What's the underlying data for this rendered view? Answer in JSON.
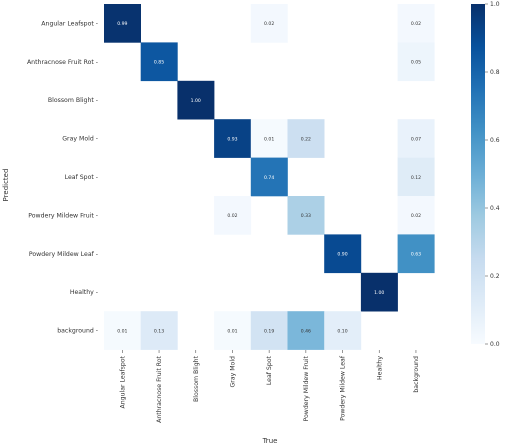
{
  "chart_data": {
    "type": "heatmap",
    "title": "",
    "xlabel": "True",
    "ylabel": "Predicted",
    "x_categories": [
      "Angular Leafspot",
      "Anthracnose Fruit Rot",
      "Blossom Blight",
      "Gray Mold",
      "Leaf Spot",
      "Powdery Mildew Fruit",
      "Powdery Mildew Leaf",
      "Healthy",
      "background"
    ],
    "y_categories": [
      "Angular Leafspot",
      "Anthracnose Fruit Rot",
      "Blossom Blight",
      "Gray Mold",
      "Leaf Spot",
      "Powdery Mildew Fruit",
      "Powdery Mildew Leaf",
      "Healthy",
      "background"
    ],
    "values": [
      [
        0.99,
        null,
        null,
        null,
        0.02,
        null,
        null,
        null,
        0.02
      ],
      [
        null,
        0.85,
        null,
        null,
        null,
        null,
        null,
        null,
        0.05
      ],
      [
        null,
        null,
        1.0,
        null,
        null,
        null,
        null,
        null,
        null
      ],
      [
        null,
        null,
        null,
        0.93,
        0.01,
        0.22,
        null,
        null,
        0.07
      ],
      [
        null,
        null,
        null,
        null,
        0.74,
        null,
        null,
        null,
        0.12
      ],
      [
        null,
        null,
        null,
        0.02,
        null,
        0.33,
        null,
        null,
        0.02
      ],
      [
        null,
        null,
        null,
        null,
        null,
        null,
        0.9,
        null,
        0.63
      ],
      [
        null,
        null,
        null,
        null,
        null,
        null,
        null,
        1.0,
        null
      ],
      [
        0.01,
        0.13,
        null,
        0.01,
        0.19,
        0.46,
        0.1,
        null,
        null
      ]
    ],
    "cell_labels": [
      [
        "0.99",
        "",
        "",
        "",
        "0.02",
        "",
        "",
        "",
        "0.02"
      ],
      [
        "",
        "0.85",
        "",
        "",
        "",
        "",
        "",
        "",
        "0.05"
      ],
      [
        "",
        "",
        "1.00",
        "",
        "",
        "",
        "",
        "",
        ""
      ],
      [
        "",
        "",
        "",
        "0.93",
        "0.01",
        "0.22",
        "",
        "",
        "0.07"
      ],
      [
        "",
        "",
        "",
        "",
        "0.74",
        "",
        "",
        "",
        "0.12"
      ],
      [
        "",
        "",
        "",
        "0.02",
        "",
        "0.33",
        "",
        "",
        "0.02"
      ],
      [
        "",
        "",
        "",
        "",
        "",
        "",
        "0.90",
        "",
        "0.63"
      ],
      [
        "",
        "",
        "",
        "",
        "",
        "",
        "",
        "1.00",
        ""
      ],
      [
        "0.01",
        "0.13",
        "",
        "0.01",
        "0.19",
        "0.46",
        "0.10",
        "",
        ""
      ]
    ],
    "colorbar": {
      "range": [
        0,
        1
      ],
      "ticks": [
        "0.0",
        "0.2",
        "0.4",
        "0.6",
        "0.8",
        "1.0"
      ]
    },
    "colormap": {
      "low": "#f7fbff",
      "high": "#08306b"
    }
  }
}
